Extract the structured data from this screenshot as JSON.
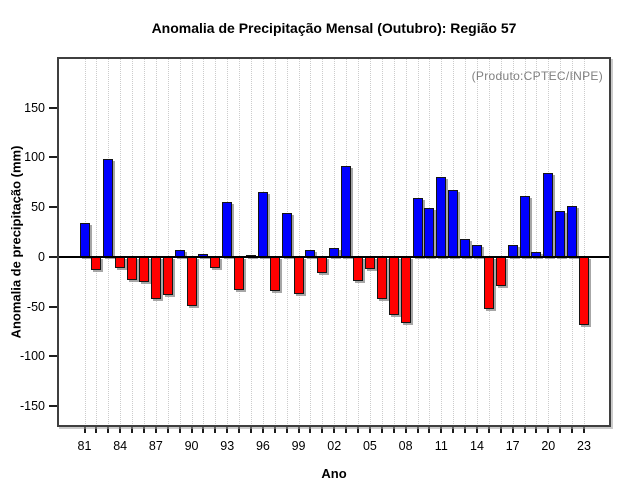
{
  "chart_data": {
    "type": "bar",
    "title": "Anomalia de Precipitação Mensal (Outubro): Região 57",
    "xlabel": "Ano",
    "ylabel": "Anomalia de precipitação (mm)",
    "annotation": "(Produto:CPTEC/INPE)",
    "years": [
      1981,
      1982,
      1983,
      1984,
      1985,
      1986,
      1987,
      1988,
      1989,
      1990,
      1991,
      1992,
      1993,
      1994,
      1995,
      1996,
      1997,
      1998,
      1999,
      2000,
      2001,
      2002,
      2003,
      2004,
      2005,
      2006,
      2007,
      2008,
      2009,
      2010,
      2011,
      2012,
      2013,
      2014,
      2015,
      2016,
      2017,
      2018,
      2019,
      2020,
      2021,
      2022,
      2023
    ],
    "values": [
      34,
      -13,
      98,
      -11,
      -23,
      -25,
      -42,
      -38,
      7,
      -49,
      3,
      -11,
      55,
      -33,
      2,
      65,
      -34,
      44,
      -37,
      7,
      -16,
      9,
      91,
      -24,
      -12,
      -42,
      -58,
      -66,
      59,
      49,
      80,
      67,
      18,
      12,
      -52,
      -29,
      12,
      61,
      5,
      84,
      46,
      51,
      -68
    ],
    "x_tick_labels": [
      "81",
      "84",
      "87",
      "90",
      "93",
      "96",
      "99",
      "02",
      "05",
      "08",
      "11",
      "14",
      "17",
      "20",
      "23"
    ],
    "x_tick_interval": 3,
    "yticks": [
      150,
      100,
      50,
      0,
      -50,
      -100,
      -150
    ],
    "ylim": [
      -170,
      200
    ],
    "grid": {
      "vertical": "dotted",
      "horizontal": "none"
    },
    "colors": {
      "positive": "#0000ff",
      "negative": "#ff0000",
      "annotation": "#808080",
      "axis": "#000000"
    }
  }
}
